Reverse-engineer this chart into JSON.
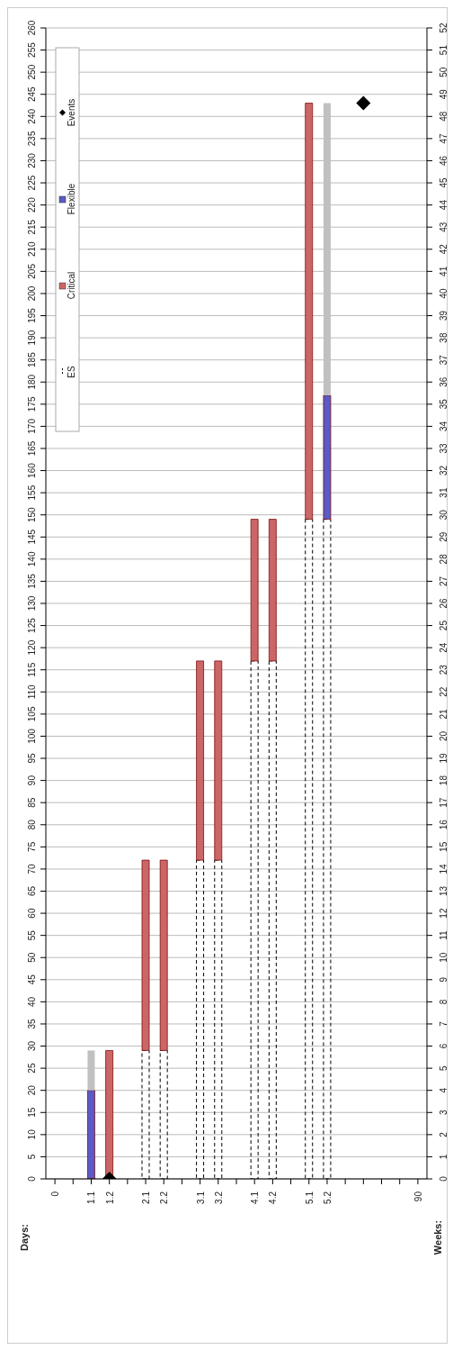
{
  "chart_data": {
    "type": "bar",
    "stacked": true,
    "ylabel": "Days:",
    "y2label": "Weeks:",
    "categories": [
      "0",
      null,
      "1.1",
      "1.2",
      null,
      "2.1",
      "2.2",
      null,
      "3.1",
      "3.2",
      null,
      "4.1",
      "4.2",
      null,
      "5.1",
      "5.2",
      null,
      null,
      null,
      null,
      "90"
    ],
    "series": [
      {
        "name": "ES",
        "color": "#000000",
        "line_style": "dashed",
        "values": [
          null,
          null,
          null,
          null,
          null,
          29,
          29,
          null,
          72,
          72,
          null,
          117,
          117,
          null,
          149,
          149,
          null,
          null,
          null,
          null,
          null
        ]
      },
      {
        "name": "Critical",
        "color": "#cc6666",
        "values": [
          null,
          null,
          null,
          29,
          null,
          43,
          43,
          null,
          45,
          45,
          null,
          32,
          32,
          null,
          94,
          null,
          null,
          null,
          null,
          null,
          null
        ]
      },
      {
        "name": "Flexible",
        "color": "#5a5ac8",
        "values": [
          null,
          null,
          20,
          null,
          null,
          null,
          null,
          null,
          null,
          null,
          null,
          null,
          null,
          null,
          null,
          28,
          null,
          null,
          null,
          null,
          null
        ]
      },
      {
        "color": "#c0c0c0",
        "values": [
          null,
          null,
          9,
          null,
          null,
          null,
          null,
          null,
          null,
          null,
          null,
          null,
          null,
          null,
          null,
          66,
          null,
          null,
          null,
          null,
          null
        ]
      },
      {
        "name": "Events",
        "type": "scatter",
        "color": "#000000",
        "values": [
          null,
          null,
          null,
          0,
          null,
          null,
          null,
          null,
          null,
          null,
          null,
          null,
          null,
          null,
          null,
          null,
          null,
          243,
          null,
          null,
          null
        ]
      }
    ],
    "marker": "diamond",
    "ylim": [
      0,
      260
    ],
    "yticks": [
      0,
      5,
      10,
      15,
      20,
      25,
      30,
      35,
      40,
      45,
      50,
      55,
      60,
      65,
      70,
      75,
      80,
      85,
      90,
      95,
      100,
      105,
      110,
      115,
      120,
      125,
      130,
      135,
      140,
      145,
      150,
      155,
      160,
      165,
      170,
      175,
      180,
      185,
      190,
      195,
      200,
      205,
      210,
      215,
      220,
      225,
      230,
      235,
      240,
      245,
      250,
      255,
      260
    ],
    "y2lim": [
      0,
      52
    ],
    "y2ticks": [
      0,
      1,
      2,
      3,
      4,
      5,
      6,
      7,
      8,
      9,
      10,
      11,
      12,
      13,
      14,
      15,
      16,
      17,
      18,
      19,
      20,
      21,
      22,
      23,
      24,
      25,
      26,
      27,
      28,
      29,
      30,
      31,
      32,
      33,
      34,
      35,
      36,
      37,
      38,
      39,
      40,
      41,
      42,
      43,
      44,
      45,
      46,
      47,
      48,
      49,
      50,
      51,
      52
    ],
    "grid": "y",
    "legend": "top left"
  }
}
